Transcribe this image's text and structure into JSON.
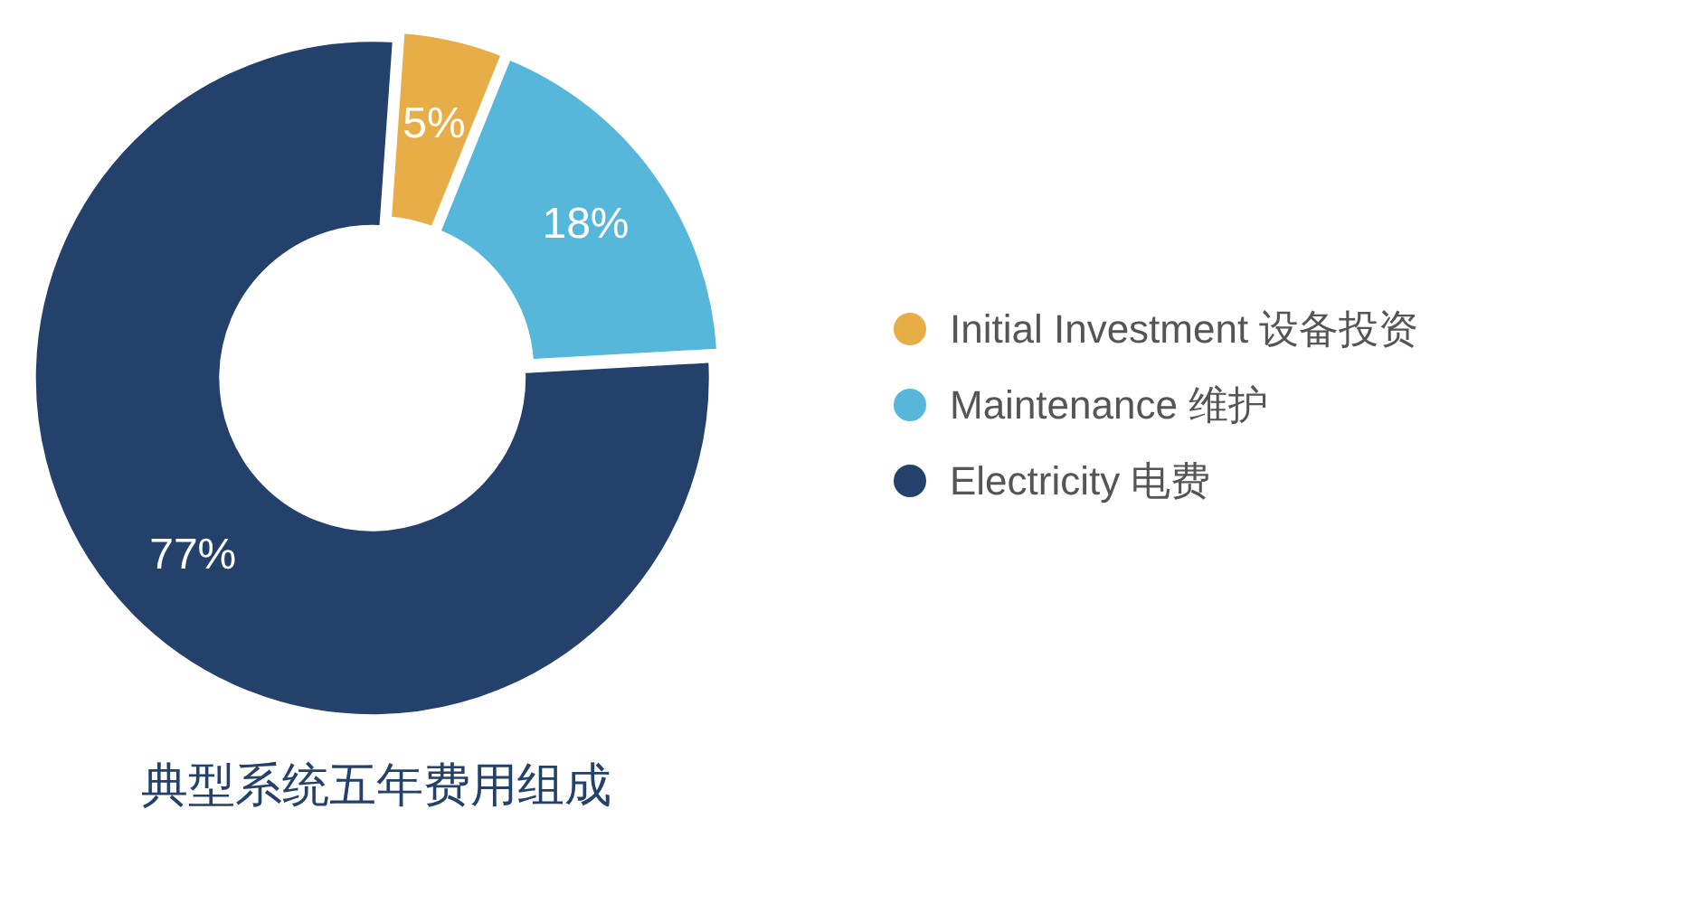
{
  "chart_data": {
    "type": "donut",
    "title": "典型系统五年费用组成",
    "categories": [
      "Initial Investment 设备投资",
      "Maintenance 维护",
      "Electricity 电费"
    ],
    "values": [
      5,
      18,
      77
    ],
    "colors": [
      "#e7ae47",
      "#57b7da",
      "#24416c"
    ],
    "value_labels": [
      "5%",
      "18%",
      "77%"
    ],
    "legend": "right"
  }
}
